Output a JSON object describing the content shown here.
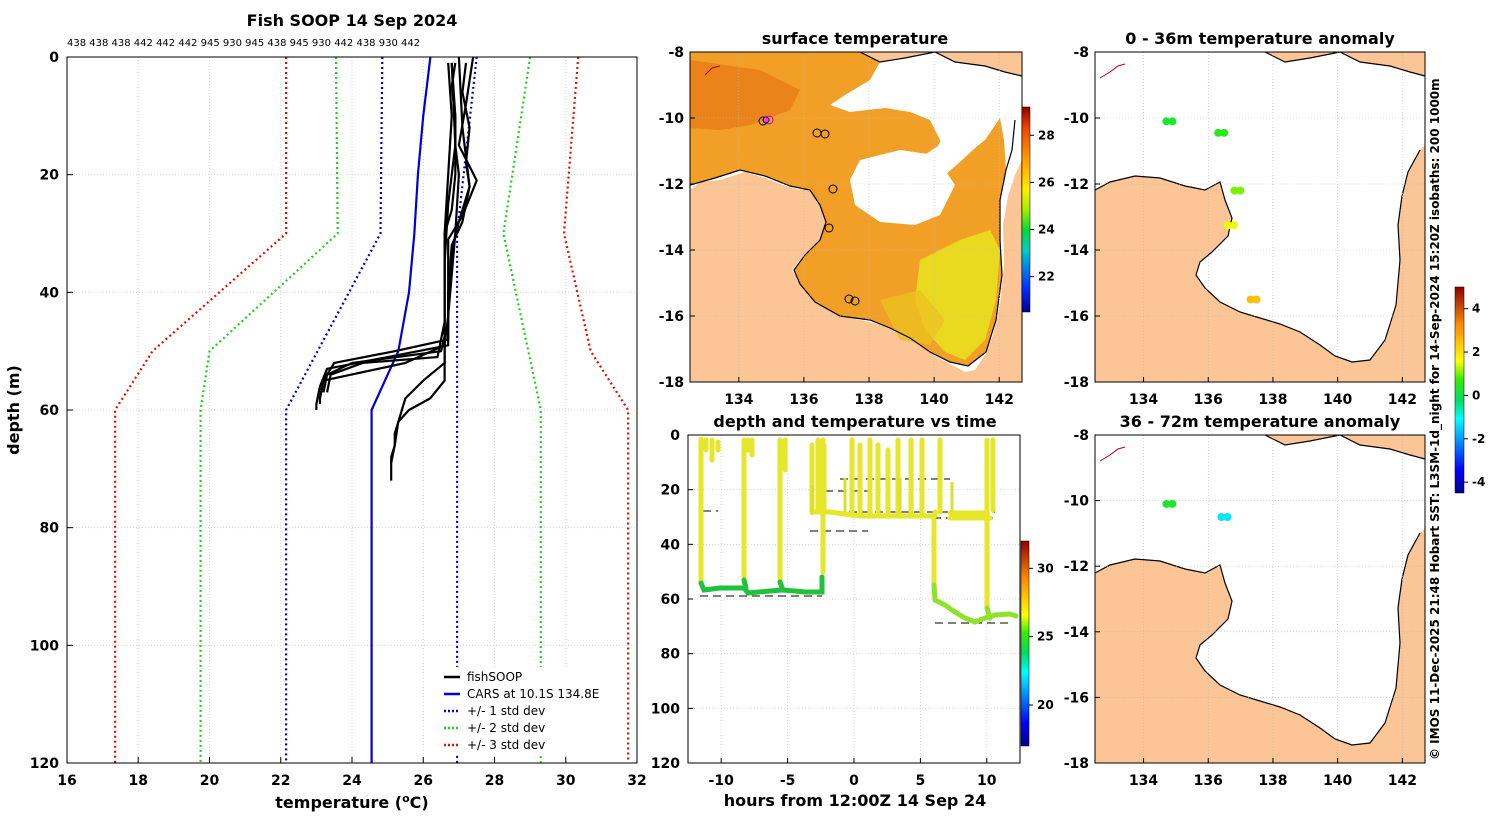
{
  "chart_data": [
    {
      "panel": "profile",
      "type": "line",
      "title": "Fish SOOP 14 Sep 2024",
      "top_labels": "438 438 438 442 442 442 945 930 945 438 945 930 442 438 930 442",
      "xlabel_pre": "temperature (",
      "xlabel_sup": "o",
      "xlabel_post": "C)",
      "ylabel": "depth (m)",
      "xlim": [
        16,
        32
      ],
      "ylim": [
        120,
        0
      ],
      "xticks": [
        "16",
        "18",
        "20",
        "22",
        "24",
        "26",
        "28",
        "30",
        "32"
      ],
      "yticks": [
        "0",
        "20",
        "40",
        "60",
        "80",
        "100",
        "120"
      ],
      "legend": [
        "fishSOOP",
        "CARS at 10.1S 134.8E",
        "+/- 1 std dev",
        "+/- 2 std dev",
        "+/- 3 std dev"
      ],
      "colors": {
        "fishsoop": "#000000",
        "cars": "#0000dd",
        "std1": "#0000cc",
        "std2": "#22cc22",
        "std3": "#dd1100"
      },
      "cars": {
        "depth": [
          0,
          10,
          20,
          30,
          40,
          50,
          60,
          120
        ],
        "temp": [
          26.2,
          26.0,
          25.85,
          25.75,
          25.6,
          25.3,
          24.55,
          24.55
        ]
      },
      "std_lines": [
        {
          "name": "+/- 1 std dev",
          "depth": [
            0,
            30,
            60,
            120
          ],
          "low": [
            24.85,
            24.8,
            22.15,
            22.15
          ],
          "high": [
            27.5,
            26.95,
            26.95,
            26.95
          ]
        },
        {
          "name": "+/- 2 std dev",
          "depth": [
            0,
            30,
            50,
            60,
            120
          ],
          "low": [
            23.55,
            23.6,
            20.0,
            19.75,
            19.75
          ],
          "high": [
            29.0,
            28.25,
            28.95,
            29.3,
            29.3
          ]
        },
        {
          "name": "+/- 3 std dev",
          "depth": [
            0,
            30,
            50,
            60,
            120
          ],
          "low": [
            22.15,
            22.15,
            18.4,
            17.35,
            17.35
          ],
          "high": [
            30.35,
            29.95,
            30.7,
            31.75,
            31.75
          ]
        }
      ],
      "fishsoop_profiles": [
        {
          "depth": [
            1,
            5,
            10,
            15,
            20,
            25,
            30,
            40,
            48,
            50,
            52,
            55,
            58,
            59
          ],
          "temp": [
            26.9,
            26.8,
            26.9,
            26.9,
            27.0,
            26.95,
            26.9,
            26.7,
            26.7,
            25.2,
            23.5,
            23.2,
            23.1,
            23.1
          ]
        },
        {
          "depth": [
            1,
            6,
            12,
            18,
            22,
            28,
            32,
            40,
            49,
            51,
            53,
            56,
            59,
            60
          ],
          "temp": [
            27.2,
            27.1,
            27.3,
            27.2,
            27.3,
            27.1,
            26.8,
            26.7,
            26.7,
            25.0,
            23.3,
            23.1,
            23.0,
            23.0
          ]
        },
        {
          "depth": [
            0,
            8,
            15,
            21,
            27,
            31,
            45,
            50,
            52,
            54,
            57
          ],
          "temp": [
            27.4,
            27.2,
            27.0,
            27.5,
            27.1,
            26.7,
            26.7,
            26.5,
            24.0,
            23.3,
            23.2
          ]
        },
        {
          "depth": [
            1,
            10,
            20,
            26,
            30,
            45,
            51,
            52,
            54,
            57
          ],
          "temp": [
            26.8,
            26.9,
            26.9,
            26.8,
            26.6,
            26.6,
            26.4,
            24.3,
            23.4,
            23.3
          ]
        },
        {
          "depth": [
            0,
            12,
            22,
            30,
            44,
            49,
            52,
            55,
            58
          ],
          "temp": [
            27.0,
            27.1,
            27.3,
            26.9,
            26.7,
            26.6,
            25.5,
            23.2,
            23.1
          ]
        },
        {
          "depth": [
            1,
            10,
            20,
            30,
            40,
            50,
            55,
            58,
            60,
            62,
            64,
            66,
            68,
            70,
            72
          ],
          "temp": [
            26.7,
            26.8,
            26.7,
            26.6,
            26.6,
            26.6,
            26.6,
            26.2,
            25.6,
            25.3,
            25.2,
            25.2,
            25.1,
            25.1,
            25.1
          ]
        },
        {
          "depth": [
            1,
            15,
            25,
            35,
            45,
            52,
            55,
            58,
            62,
            66,
            69
          ],
          "temp": [
            26.8,
            26.9,
            26.7,
            26.6,
            26.6,
            26.6,
            26.0,
            25.5,
            25.3,
            25.2,
            25.1
          ]
        }
      ]
    },
    {
      "panel": "sst_map",
      "type": "heatmap",
      "title": "surface temperature",
      "xlim": [
        132.5,
        142.7
      ],
      "ylim": [
        -18,
        -8
      ],
      "xticks": [
        "134",
        "136",
        "138",
        "140",
        "142"
      ],
      "yticks": [
        "-8",
        "-10",
        "-12",
        "-14",
        "-16",
        "-18"
      ],
      "colorbar_ticks": [
        "28",
        "26",
        "24",
        "22"
      ],
      "colorbar_range": [
        20.5,
        29.2
      ]
    },
    {
      "panel": "depth_time",
      "type": "scatter",
      "title": "depth and temperature vs time",
      "xlabel": "hours from 12:00Z 14 Sep 24",
      "xlim": [
        -12.5,
        12.5
      ],
      "ylim": [
        120,
        0
      ],
      "xticks": [
        "-10",
        "-5",
        "0",
        "5",
        "10"
      ],
      "yticks": [
        "0",
        "20",
        "40",
        "60",
        "80",
        "100",
        "120"
      ],
      "colorbar_ticks": [
        "30",
        "25",
        "20"
      ],
      "colorbar_range": [
        17,
        32
      ]
    },
    {
      "panel": "anom_0_36",
      "type": "scatter",
      "title": "0 - 36m temperature anomaly",
      "xlim": [
        132.5,
        142.7
      ],
      "ylim": [
        -18,
        -8
      ],
      "xticks": [
        "134",
        "136",
        "138",
        "140",
        "142"
      ],
      "yticks": [
        "-8",
        "-10",
        "-12",
        "-14",
        "-16",
        "-18"
      ],
      "points": [
        {
          "lon": 134.8,
          "lat": -10.1,
          "anom": 0.3
        },
        {
          "lon": 136.4,
          "lat": -10.45,
          "anom": 0.5
        },
        {
          "lon": 136.9,
          "lat": -12.2,
          "anom": 1.0
        },
        {
          "lon": 136.7,
          "lat": -13.25,
          "anom": 1.5
        },
        {
          "lon": 137.4,
          "lat": -15.5,
          "anom": 2.5
        }
      ]
    },
    {
      "panel": "anom_36_72",
      "type": "scatter",
      "title": "36 - 72m temperature anomaly",
      "xlim": [
        132.5,
        142.7
      ],
      "ylim": [
        -18,
        -8
      ],
      "xticks": [
        "134",
        "136",
        "138",
        "140",
        "142"
      ],
      "yticks": [
        "-8",
        "-10",
        "-12",
        "-14",
        "-16",
        "-18"
      ],
      "colorbar_ticks": [
        "4",
        "2",
        "0",
        "-2",
        "-4"
      ],
      "colorbar_range": [
        -4.5,
        5
      ],
      "points": [
        {
          "lon": 134.8,
          "lat": -10.1,
          "anom": 0.3
        },
        {
          "lon": 136.5,
          "lat": -10.5,
          "anom": -1.3
        }
      ]
    }
  ],
  "side_note": "© IMOS 11-Dec-2025 21:48 Hobart SST: L3SM-1d_night for 14-Sep-2024 15:20Z isobaths: 200  1000m"
}
